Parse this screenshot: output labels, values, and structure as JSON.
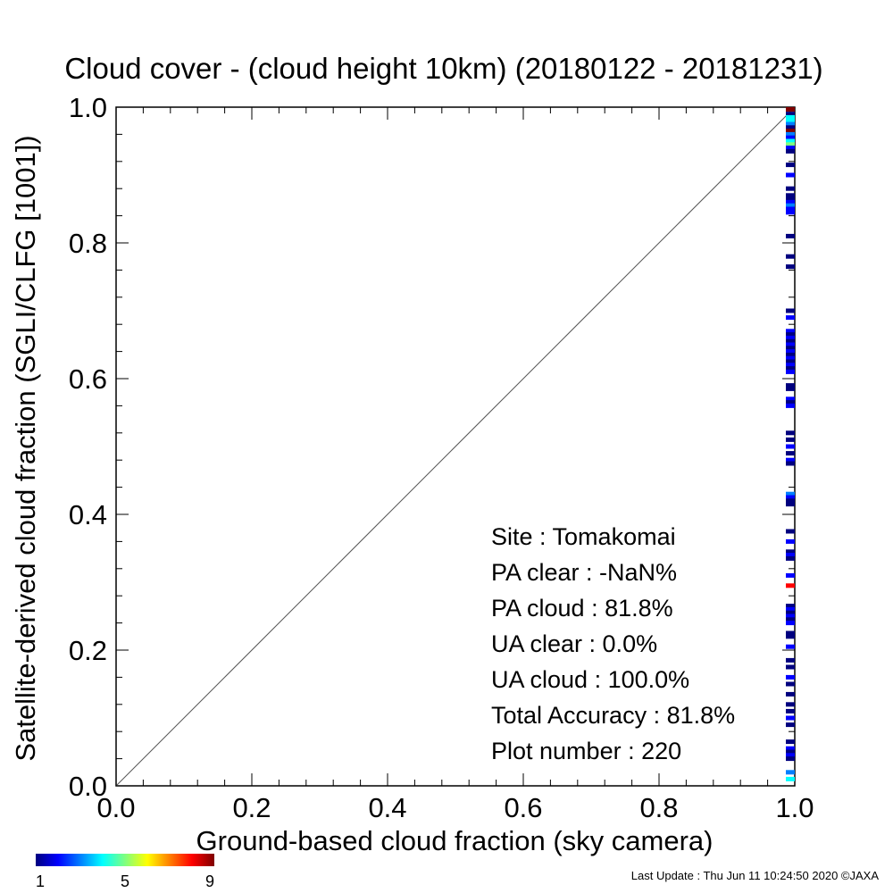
{
  "chart_data": {
    "type": "scatter",
    "title": "Cloud cover - (cloud height 10km)  (20180122 - 20181231)",
    "xlabel": "Ground-based cloud fraction (sky camera)",
    "ylabel": "Satellite-derived cloud fraction (SGLI/CLFG [1001])",
    "xlim": [
      0.0,
      1.0
    ],
    "ylim": [
      0.0,
      1.0
    ],
    "x_ticks": [
      "0.0",
      "0.2",
      "0.4",
      "0.6",
      "0.8",
      "1.0"
    ],
    "y_ticks": [
      "0.0",
      "0.2",
      "0.4",
      "0.6",
      "0.8",
      "1.0"
    ],
    "grid": false,
    "reference_line": "y = x",
    "points": [
      {
        "x": 1.0,
        "y": 1.0,
        "count": 9
      },
      {
        "x": 1.0,
        "y": 0.99,
        "count": 1
      },
      {
        "x": 1.0,
        "y": 0.985,
        "count": 4
      },
      {
        "x": 1.0,
        "y": 0.98,
        "count": 4
      },
      {
        "x": 1.0,
        "y": 0.975,
        "count": 3
      },
      {
        "x": 1.0,
        "y": 0.97,
        "count": 1
      },
      {
        "x": 1.0,
        "y": 0.965,
        "count": 9
      },
      {
        "x": 1.0,
        "y": 0.96,
        "count": 3
      },
      {
        "x": 1.0,
        "y": 0.955,
        "count": 2
      },
      {
        "x": 1.0,
        "y": 0.95,
        "count": 4
      },
      {
        "x": 1.0,
        "y": 0.945,
        "count": 5
      },
      {
        "x": 1.0,
        "y": 0.94,
        "count": 2
      },
      {
        "x": 1.0,
        "y": 0.935,
        "count": 1
      },
      {
        "x": 1.0,
        "y": 0.915,
        "count": 1
      },
      {
        "x": 1.0,
        "y": 0.9,
        "count": 2
      },
      {
        "x": 1.0,
        "y": 0.88,
        "count": 1
      },
      {
        "x": 1.0,
        "y": 0.87,
        "count": 1
      },
      {
        "x": 1.0,
        "y": 0.865,
        "count": 1
      },
      {
        "x": 1.0,
        "y": 0.86,
        "count": 2
      },
      {
        "x": 1.0,
        "y": 0.855,
        "count": 3
      },
      {
        "x": 1.0,
        "y": 0.85,
        "count": 2
      },
      {
        "x": 1.0,
        "y": 0.845,
        "count": 2
      },
      {
        "x": 1.0,
        "y": 0.81,
        "count": 1
      },
      {
        "x": 1.0,
        "y": 0.78,
        "count": 1
      },
      {
        "x": 1.0,
        "y": 0.765,
        "count": 1
      },
      {
        "x": 1.0,
        "y": 0.7,
        "count": 1
      },
      {
        "x": 1.0,
        "y": 0.69,
        "count": 2
      },
      {
        "x": 1.0,
        "y": 0.67,
        "count": 2
      },
      {
        "x": 1.0,
        "y": 0.665,
        "count": 1
      },
      {
        "x": 1.0,
        "y": 0.66,
        "count": 2
      },
      {
        "x": 1.0,
        "y": 0.655,
        "count": 1
      },
      {
        "x": 1.0,
        "y": 0.65,
        "count": 2
      },
      {
        "x": 1.0,
        "y": 0.645,
        "count": 1
      },
      {
        "x": 1.0,
        "y": 0.64,
        "count": 2
      },
      {
        "x": 1.0,
        "y": 0.635,
        "count": 1
      },
      {
        "x": 1.0,
        "y": 0.63,
        "count": 2
      },
      {
        "x": 1.0,
        "y": 0.625,
        "count": 1
      },
      {
        "x": 1.0,
        "y": 0.62,
        "count": 2
      },
      {
        "x": 1.0,
        "y": 0.615,
        "count": 1
      },
      {
        "x": 1.0,
        "y": 0.61,
        "count": 2
      },
      {
        "x": 1.0,
        "y": 0.59,
        "count": 1
      },
      {
        "x": 1.0,
        "y": 0.585,
        "count": 1
      },
      {
        "x": 1.0,
        "y": 0.57,
        "count": 2
      },
      {
        "x": 1.0,
        "y": 0.565,
        "count": 1
      },
      {
        "x": 1.0,
        "y": 0.56,
        "count": 2
      },
      {
        "x": 1.0,
        "y": 0.52,
        "count": 1
      },
      {
        "x": 1.0,
        "y": 0.51,
        "count": 1
      },
      {
        "x": 1.0,
        "y": 0.5,
        "count": 2
      },
      {
        "x": 1.0,
        "y": 0.49,
        "count": 1
      },
      {
        "x": 1.0,
        "y": 0.48,
        "count": 2
      },
      {
        "x": 1.0,
        "y": 0.475,
        "count": 1
      },
      {
        "x": 1.0,
        "y": 0.43,
        "count": 3
      },
      {
        "x": 1.0,
        "y": 0.425,
        "count": 2
      },
      {
        "x": 1.0,
        "y": 0.42,
        "count": 1
      },
      {
        "x": 1.0,
        "y": 0.415,
        "count": 1
      },
      {
        "x": 1.0,
        "y": 0.375,
        "count": 1
      },
      {
        "x": 1.0,
        "y": 0.36,
        "count": 2
      },
      {
        "x": 1.0,
        "y": 0.345,
        "count": 1
      },
      {
        "x": 1.0,
        "y": 0.34,
        "count": 2
      },
      {
        "x": 1.0,
        "y": 0.335,
        "count": 1
      },
      {
        "x": 1.0,
        "y": 0.31,
        "count": 2
      },
      {
        "x": 1.0,
        "y": 0.295,
        "count": 8
      },
      {
        "x": 1.0,
        "y": 0.265,
        "count": 1
      },
      {
        "x": 1.0,
        "y": 0.26,
        "count": 2
      },
      {
        "x": 1.0,
        "y": 0.255,
        "count": 1
      },
      {
        "x": 1.0,
        "y": 0.25,
        "count": 2
      },
      {
        "x": 1.0,
        "y": 0.245,
        "count": 1
      },
      {
        "x": 1.0,
        "y": 0.24,
        "count": 2
      },
      {
        "x": 1.0,
        "y": 0.225,
        "count": 1
      },
      {
        "x": 1.0,
        "y": 0.22,
        "count": 1
      },
      {
        "x": 1.0,
        "y": 0.205,
        "count": 2
      },
      {
        "x": 1.0,
        "y": 0.185,
        "count": 1
      },
      {
        "x": 1.0,
        "y": 0.175,
        "count": 1
      },
      {
        "x": 1.0,
        "y": 0.16,
        "count": 2
      },
      {
        "x": 1.0,
        "y": 0.15,
        "count": 1
      },
      {
        "x": 1.0,
        "y": 0.135,
        "count": 1
      },
      {
        "x": 1.0,
        "y": 0.12,
        "count": 1
      },
      {
        "x": 1.0,
        "y": 0.11,
        "count": 1
      },
      {
        "x": 1.0,
        "y": 0.1,
        "count": 2
      },
      {
        "x": 1.0,
        "y": 0.09,
        "count": 1
      },
      {
        "x": 1.0,
        "y": 0.065,
        "count": 1
      },
      {
        "x": 1.0,
        "y": 0.055,
        "count": 2
      },
      {
        "x": 1.0,
        "y": 0.05,
        "count": 1
      },
      {
        "x": 1.0,
        "y": 0.045,
        "count": 2
      },
      {
        "x": 1.0,
        "y": 0.04,
        "count": 1
      },
      {
        "x": 1.0,
        "y": 0.02,
        "count": 3
      },
      {
        "x": 1.0,
        "y": 0.01,
        "count": 4
      }
    ],
    "colorbar": {
      "min": 1,
      "max": 9,
      "ticks": [
        "1",
        "5",
        "9"
      ],
      "colors": [
        "#00007f",
        "#0000ff",
        "#007fff",
        "#00ffff",
        "#7fff7f",
        "#ffff00",
        "#ff7f00",
        "#ff0000",
        "#7f0000"
      ]
    },
    "stats": [
      {
        "label": "Site : Tomakomai"
      },
      {
        "label": "PA clear :  -NaN%"
      },
      {
        "label": "PA cloud :  81.8%"
      },
      {
        "label": "UA clear :   0.0%"
      },
      {
        "label": "UA cloud : 100.0%"
      },
      {
        "label": "Total Accuracy :  81.8%"
      },
      {
        "label": "Plot number :       220"
      }
    ]
  },
  "footer": "Last Update : Thu Jun 11 10:24:50 2020  ©JAXA"
}
